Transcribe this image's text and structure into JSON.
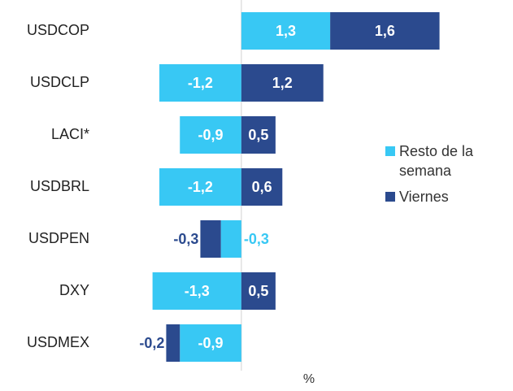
{
  "chart_data": {
    "type": "bar",
    "orientation": "horizontal",
    "stacked": true,
    "x_label": "%",
    "categories": [
      "USDCOP",
      "USDCLP",
      "LACI*",
      "USDBRL",
      "USDPEN",
      "DXY",
      "USDMEX"
    ],
    "series": [
      {
        "name": "Resto de la semana",
        "color": "#38c8f4",
        "values": [
          1.3,
          -1.2,
          -0.9,
          -1.2,
          -0.3,
          -1.3,
          -0.9
        ],
        "value_labels": [
          "1,3",
          "-1,2",
          "-0,9",
          "-1,2",
          "-0,3",
          "-1,3",
          "-0,9"
        ]
      },
      {
        "name": "Viernes",
        "color": "#2b4a8e",
        "values": [
          1.6,
          1.2,
          0.5,
          0.6,
          -0.3,
          0.5,
          -0.2
        ],
        "value_labels": [
          "1,6",
          "1,2",
          "0,5",
          "0,6",
          "-0,3",
          "0,5",
          "-0,2"
        ]
      }
    ],
    "xlim": [
      -1.7,
      3.0
    ],
    "legend": "right"
  }
}
